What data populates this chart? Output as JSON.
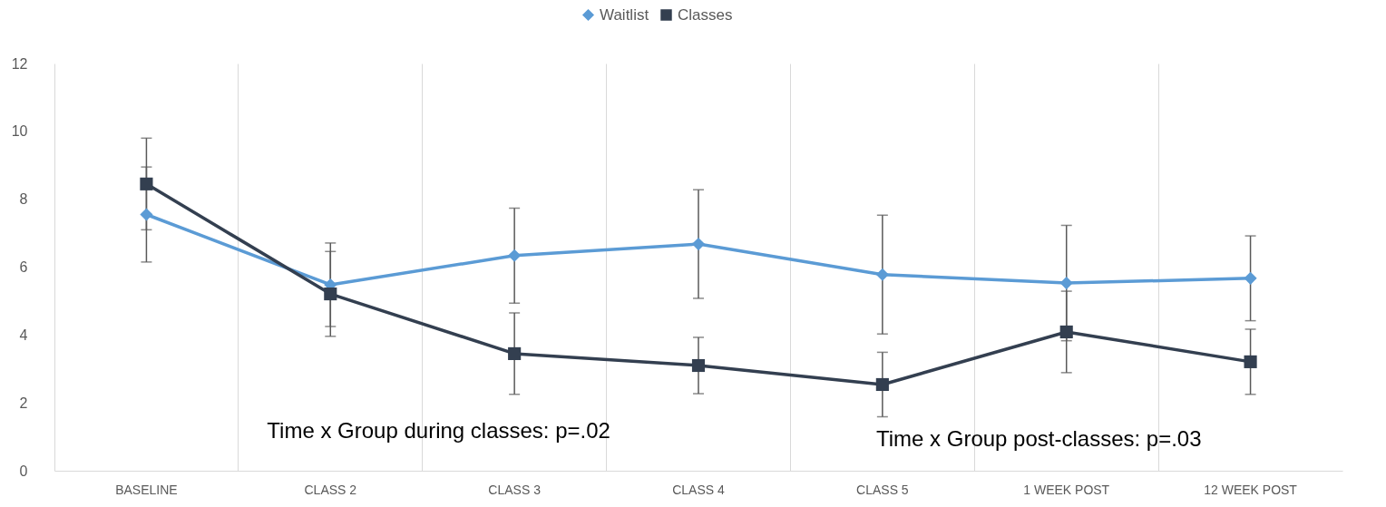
{
  "chart_data": {
    "type": "line",
    "categories": [
      "BASELINE",
      "CLASS 2",
      "CLASS 3",
      "CLASS 4",
      "CLASS 5",
      "1 WEEK POST",
      "12 WEEK POST"
    ],
    "series": [
      {
        "name": "Waitlist",
        "color": "#5b9bd5",
        "marker": "diamond",
        "values": [
          7.55,
          5.48,
          6.34,
          6.68,
          5.78,
          5.53,
          5.67
        ],
        "errors": [
          1.4,
          1.23,
          1.4,
          1.6,
          1.75,
          1.7,
          1.25
        ]
      },
      {
        "name": "Classes",
        "color": "#333f50",
        "marker": "square",
        "values": [
          8.45,
          5.21,
          3.45,
          3.1,
          2.54,
          4.09,
          3.21
        ],
        "errors": [
          1.35,
          1.25,
          1.2,
          0.83,
          0.95,
          1.2,
          0.96
        ]
      }
    ],
    "ylim": [
      0,
      12
    ],
    "yticks": [
      0,
      2,
      4,
      6,
      8,
      10,
      12
    ],
    "grid": "x",
    "legend": "top",
    "line_style": "solid",
    "annotations": [
      "Time x Group during classes: p=.02",
      "Time x Group post-classes: p=.03"
    ]
  }
}
